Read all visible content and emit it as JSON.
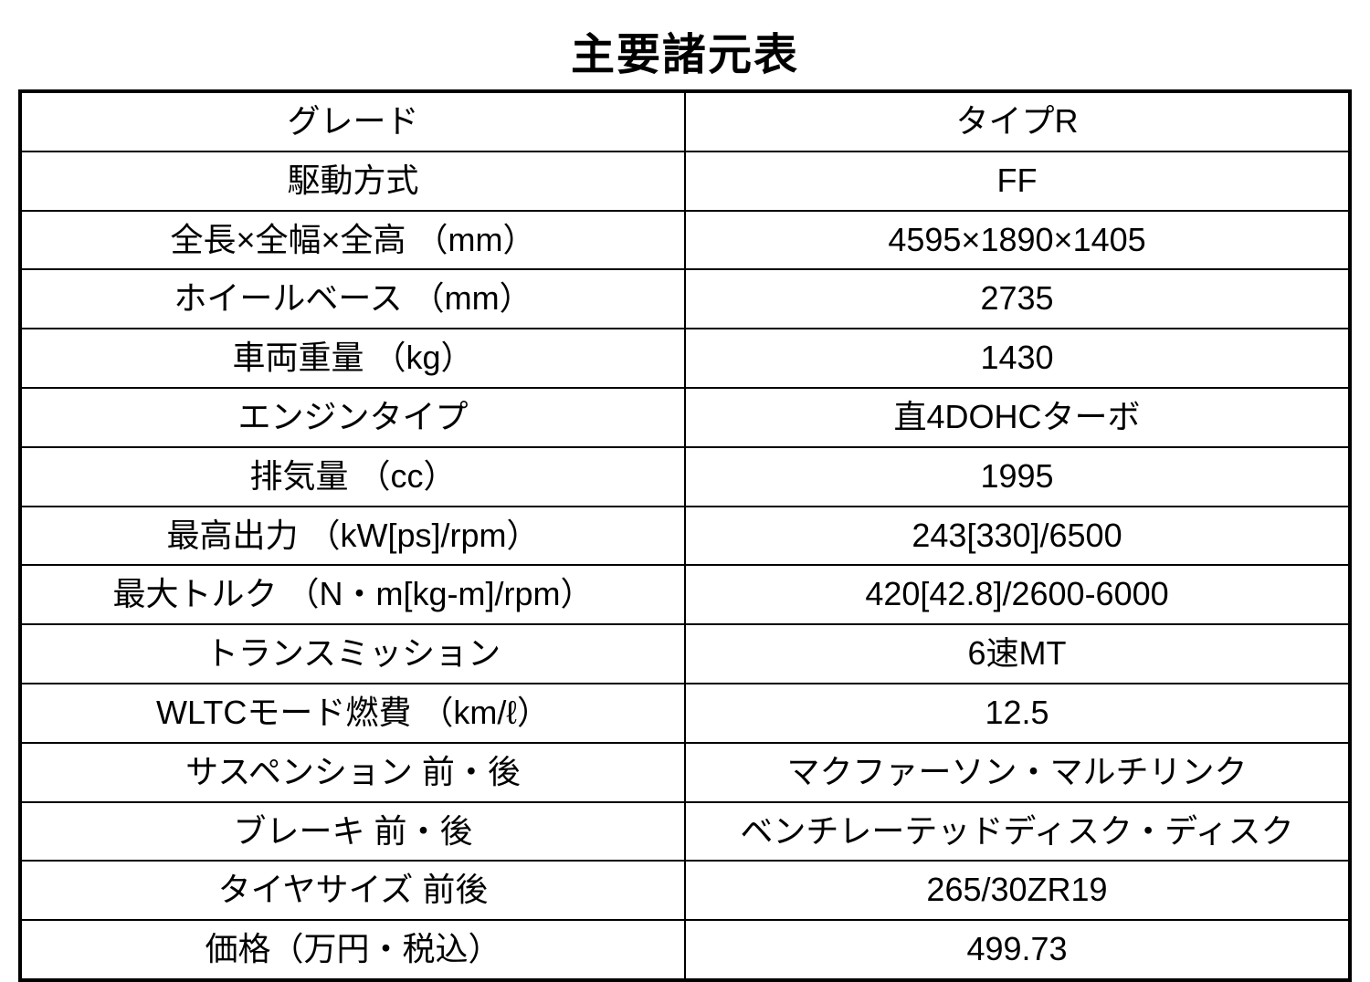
{
  "title": "主要諸元表",
  "table": {
    "type": "table",
    "background_color": "#ffffff",
    "border_color": "#000000",
    "outer_border_width": 4,
    "inner_border_width": 2,
    "text_color": "#000000",
    "title_fontsize": 48,
    "cell_fontsize": 36,
    "column_widths": [
      "50%",
      "50%"
    ],
    "text_align": "center",
    "rows": [
      {
        "label": "グレード",
        "value": "タイプR"
      },
      {
        "label": "駆動方式",
        "value": "FF"
      },
      {
        "label": "全長×全幅×全高 （mm）",
        "value": "4595×1890×1405"
      },
      {
        "label": "ホイールベース （mm）",
        "value": "2735"
      },
      {
        "label": "車両重量 （kg）",
        "value": "1430"
      },
      {
        "label": "エンジンタイプ",
        "value": "直4DOHCターボ"
      },
      {
        "label": "排気量 （cc）",
        "value": "1995"
      },
      {
        "label": "最高出力 （kW[ps]/rpm）",
        "value": "243[330]/6500"
      },
      {
        "label": "最大トルク （N・m[kg-m]/rpm）",
        "value": "420[42.8]/2600-6000"
      },
      {
        "label": "トランスミッション",
        "value": "6速MT"
      },
      {
        "label": "WLTCモード燃費 （km/ℓ）",
        "value": "12.5"
      },
      {
        "label": "サスペンション 前・後",
        "value": "マクファーソン・マルチリンク"
      },
      {
        "label": "ブレーキ 前・後",
        "value": "ベンチレーテッドディスク・ディスク"
      },
      {
        "label": "タイヤサイズ 前後",
        "value": "265/30ZR19"
      },
      {
        "label": "価格（万円・税込）",
        "value": "499.73"
      }
    ]
  }
}
